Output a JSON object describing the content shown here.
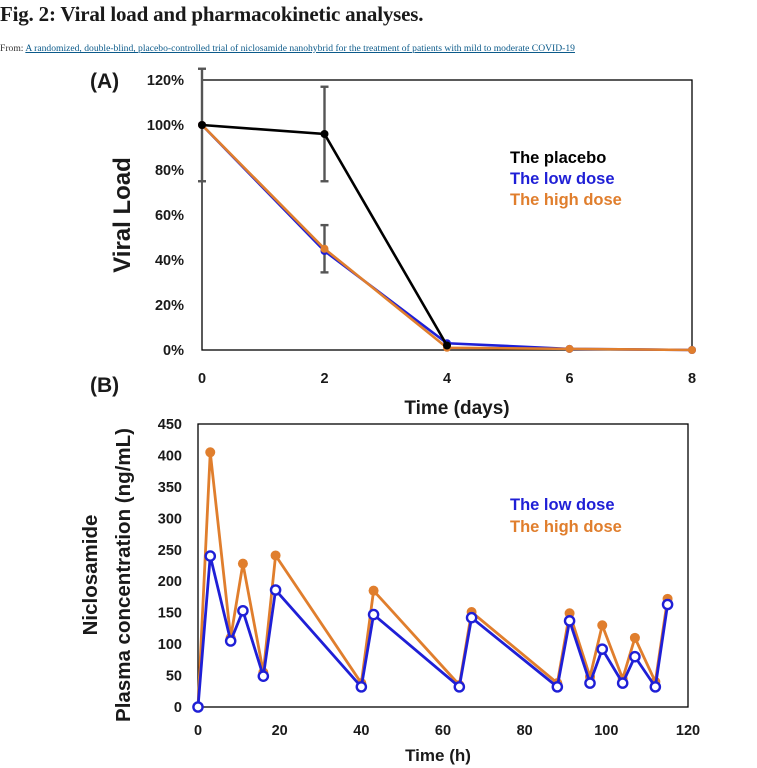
{
  "figure": {
    "title": "Fig. 2: Viral load and pharmacokinetic analyses.",
    "from_prefix": "From:",
    "from_link": "A randomized, double-blind, placebo-controlled trial of niclosamide nanohybrid for the treatment of patients with mild to moderate COVID-19"
  },
  "colors": {
    "placebo": "#000000",
    "low": "#1f1fd6",
    "high": "#e07e2d",
    "errorbar": "#555555"
  },
  "chart_data": [
    {
      "type": "line",
      "panel_label": "(A)",
      "title": "",
      "xlabel": "Time (days)",
      "ylabel": "Viral Load",
      "xlim": [
        0,
        8
      ],
      "ylim": [
        0,
        120
      ],
      "x_ticks": [
        0,
        2,
        4,
        6,
        8
      ],
      "y_ticks": [
        0,
        20,
        40,
        60,
        80,
        100,
        120
      ],
      "x_tick_labels": [
        "0",
        "2",
        "4",
        "6",
        "8"
      ],
      "y_tick_labels": [
        "0%",
        "20%",
        "40%",
        "60%",
        "80%",
        "100%",
        "120%"
      ],
      "legend": [
        "The placebo",
        "The low dose",
        "The high dose"
      ],
      "legend_position": "right",
      "series": [
        {
          "name": "The placebo",
          "x": [
            0,
            2,
            4
          ],
          "y": [
            100,
            96,
            2
          ],
          "err": [
            25,
            21,
            0
          ]
        },
        {
          "name": "The low dose",
          "x": [
            0,
            2,
            4,
            6,
            8
          ],
          "y": [
            100,
            44,
            3,
            0.5,
            0
          ],
          "err": [
            0,
            0,
            0,
            0,
            0
          ]
        },
        {
          "name": "The high dose",
          "x": [
            0,
            2,
            4,
            6,
            8
          ],
          "y": [
            100,
            45,
            1,
            0.5,
            0
          ],
          "err": [
            0,
            10.5,
            0,
            0,
            0
          ]
        }
      ]
    },
    {
      "type": "line",
      "panel_label": "(B)",
      "title": "",
      "xlabel": "Time (h)",
      "ylabel_line1": "Niclosamide",
      "ylabel_line2": "Plasma concentration (ng/mL)",
      "xlim": [
        0,
        120
      ],
      "ylim": [
        0,
        450
      ],
      "x_ticks": [
        0,
        20,
        40,
        60,
        80,
        100,
        120
      ],
      "y_ticks": [
        0,
        50,
        100,
        150,
        200,
        250,
        300,
        350,
        400,
        450
      ],
      "x_tick_labels": [
        "0",
        "20",
        "40",
        "60",
        "80",
        "100",
        "120"
      ],
      "y_tick_labels": [
        "0",
        "50",
        "100",
        "150",
        "200",
        "250",
        "300",
        "350",
        "400",
        "450"
      ],
      "legend": [
        "The low dose",
        "The high dose"
      ],
      "legend_position": "right",
      "series": [
        {
          "name": "The high dose",
          "x": [
            0,
            3,
            8,
            11,
            16,
            19,
            40,
            43,
            64,
            67,
            88,
            91,
            96,
            99,
            104,
            107,
            112,
            115
          ],
          "y": [
            0,
            405,
            110,
            228,
            55,
            241,
            38,
            185,
            35,
            151,
            38,
            149,
            48,
            130,
            45,
            110,
            40,
            172
          ]
        },
        {
          "name": "The low dose",
          "x": [
            0,
            3,
            8,
            11,
            16,
            19,
            40,
            43,
            64,
            67,
            88,
            91,
            96,
            99,
            104,
            107,
            112,
            115
          ],
          "y": [
            0,
            240,
            105,
            153,
            49,
            186,
            32,
            147,
            32,
            142,
            32,
            137,
            38,
            92,
            38,
            80,
            32,
            163
          ]
        }
      ]
    }
  ]
}
